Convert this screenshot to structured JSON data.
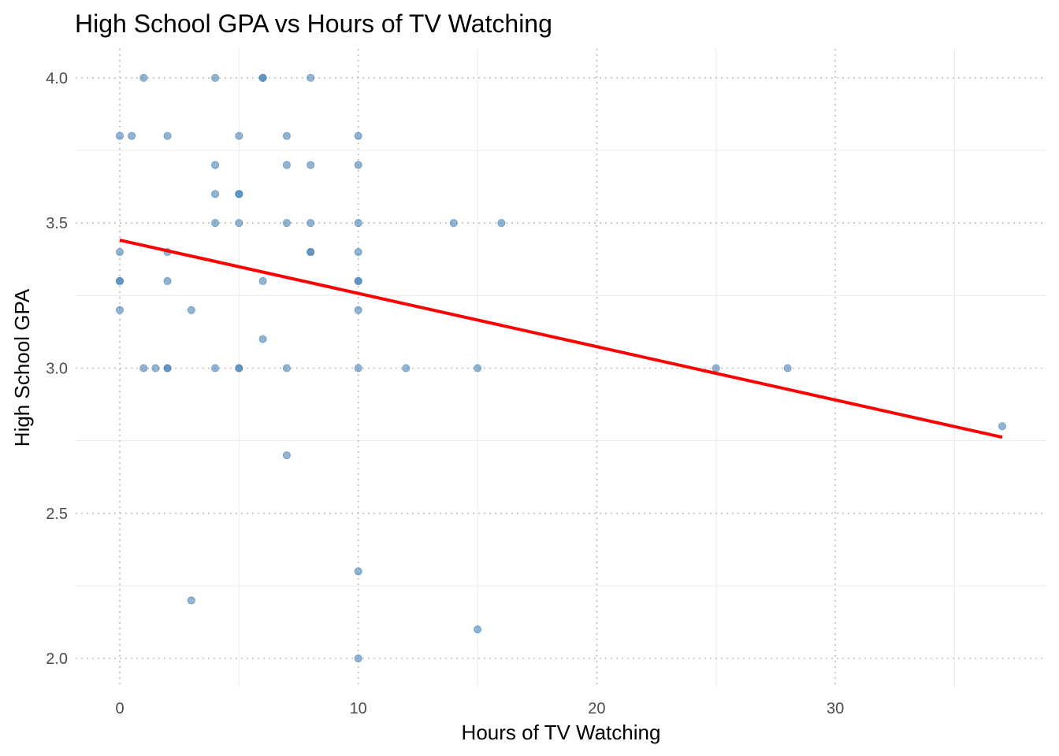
{
  "chart_data": {
    "type": "scatter",
    "title": "High School GPA vs Hours of TV Watching",
    "xlabel": "Hours of TV Watching",
    "ylabel": "High School GPA",
    "xlim": [
      -1.85,
      38.85
    ],
    "ylim": [
      1.9,
      4.1
    ],
    "x_major_ticks": [
      0,
      10,
      20,
      30
    ],
    "x_minor_ticks": [
      5,
      15,
      25,
      35
    ],
    "y_major_ticks": [
      2.0,
      2.5,
      3.0,
      3.5,
      4.0
    ],
    "y_minor_ticks": [
      2.25,
      2.75,
      3.25,
      3.75
    ],
    "x_tick_labels": [
      "0",
      "10",
      "20",
      "30"
    ],
    "y_tick_labels": [
      "2.0",
      "2.5",
      "3.0",
      "3.5",
      "4.0"
    ],
    "grid": true,
    "legend": "none",
    "point_color": "#4682b4",
    "line_color": "#ff0000",
    "points": [
      {
        "x": 1,
        "y": 4.0
      },
      {
        "x": 4,
        "y": 4.0
      },
      {
        "x": 6,
        "y": 4.0
      },
      {
        "x": 6,
        "y": 4.0
      },
      {
        "x": 8,
        "y": 4.0
      },
      {
        "x": 0,
        "y": 3.8
      },
      {
        "x": 0.5,
        "y": 3.8
      },
      {
        "x": 2,
        "y": 3.8
      },
      {
        "x": 5,
        "y": 3.8
      },
      {
        "x": 7,
        "y": 3.8
      },
      {
        "x": 10,
        "y": 3.8
      },
      {
        "x": 4,
        "y": 3.7
      },
      {
        "x": 7,
        "y": 3.7
      },
      {
        "x": 8,
        "y": 3.7
      },
      {
        "x": 10,
        "y": 3.7
      },
      {
        "x": 4,
        "y": 3.6
      },
      {
        "x": 5,
        "y": 3.6
      },
      {
        "x": 5,
        "y": 3.6
      },
      {
        "x": 4,
        "y": 3.5
      },
      {
        "x": 5,
        "y": 3.5
      },
      {
        "x": 7,
        "y": 3.5
      },
      {
        "x": 8,
        "y": 3.5
      },
      {
        "x": 10,
        "y": 3.5
      },
      {
        "x": 14,
        "y": 3.5
      },
      {
        "x": 16,
        "y": 3.5
      },
      {
        "x": 0,
        "y": 3.4
      },
      {
        "x": 2,
        "y": 3.4
      },
      {
        "x": 8,
        "y": 3.4
      },
      {
        "x": 8,
        "y": 3.4
      },
      {
        "x": 10,
        "y": 3.4
      },
      {
        "x": 0,
        "y": 3.3
      },
      {
        "x": 0,
        "y": 3.3
      },
      {
        "x": 2,
        "y": 3.3
      },
      {
        "x": 6,
        "y": 3.3
      },
      {
        "x": 10,
        "y": 3.3
      },
      {
        "x": 10,
        "y": 3.3
      },
      {
        "x": 0,
        "y": 3.2
      },
      {
        "x": 3,
        "y": 3.2
      },
      {
        "x": 10,
        "y": 3.2
      },
      {
        "x": 6,
        "y": 3.1
      },
      {
        "x": 1,
        "y": 3.0
      },
      {
        "x": 1.5,
        "y": 3.0
      },
      {
        "x": 2,
        "y": 3.0
      },
      {
        "x": 2,
        "y": 3.0
      },
      {
        "x": 4,
        "y": 3.0
      },
      {
        "x": 5,
        "y": 3.0
      },
      {
        "x": 5,
        "y": 3.0
      },
      {
        "x": 7,
        "y": 3.0
      },
      {
        "x": 10,
        "y": 3.0
      },
      {
        "x": 12,
        "y": 3.0
      },
      {
        "x": 15,
        "y": 3.0
      },
      {
        "x": 25,
        "y": 3.0
      },
      {
        "x": 28,
        "y": 3.0
      },
      {
        "x": 37,
        "y": 2.8
      },
      {
        "x": 7,
        "y": 2.7
      },
      {
        "x": 10,
        "y": 2.3
      },
      {
        "x": 3,
        "y": 2.2
      },
      {
        "x": 15,
        "y": 2.1
      },
      {
        "x": 10,
        "y": 2.0
      }
    ],
    "fit_line": {
      "x": [
        0,
        37
      ],
      "y": [
        3.441,
        2.762
      ]
    }
  }
}
